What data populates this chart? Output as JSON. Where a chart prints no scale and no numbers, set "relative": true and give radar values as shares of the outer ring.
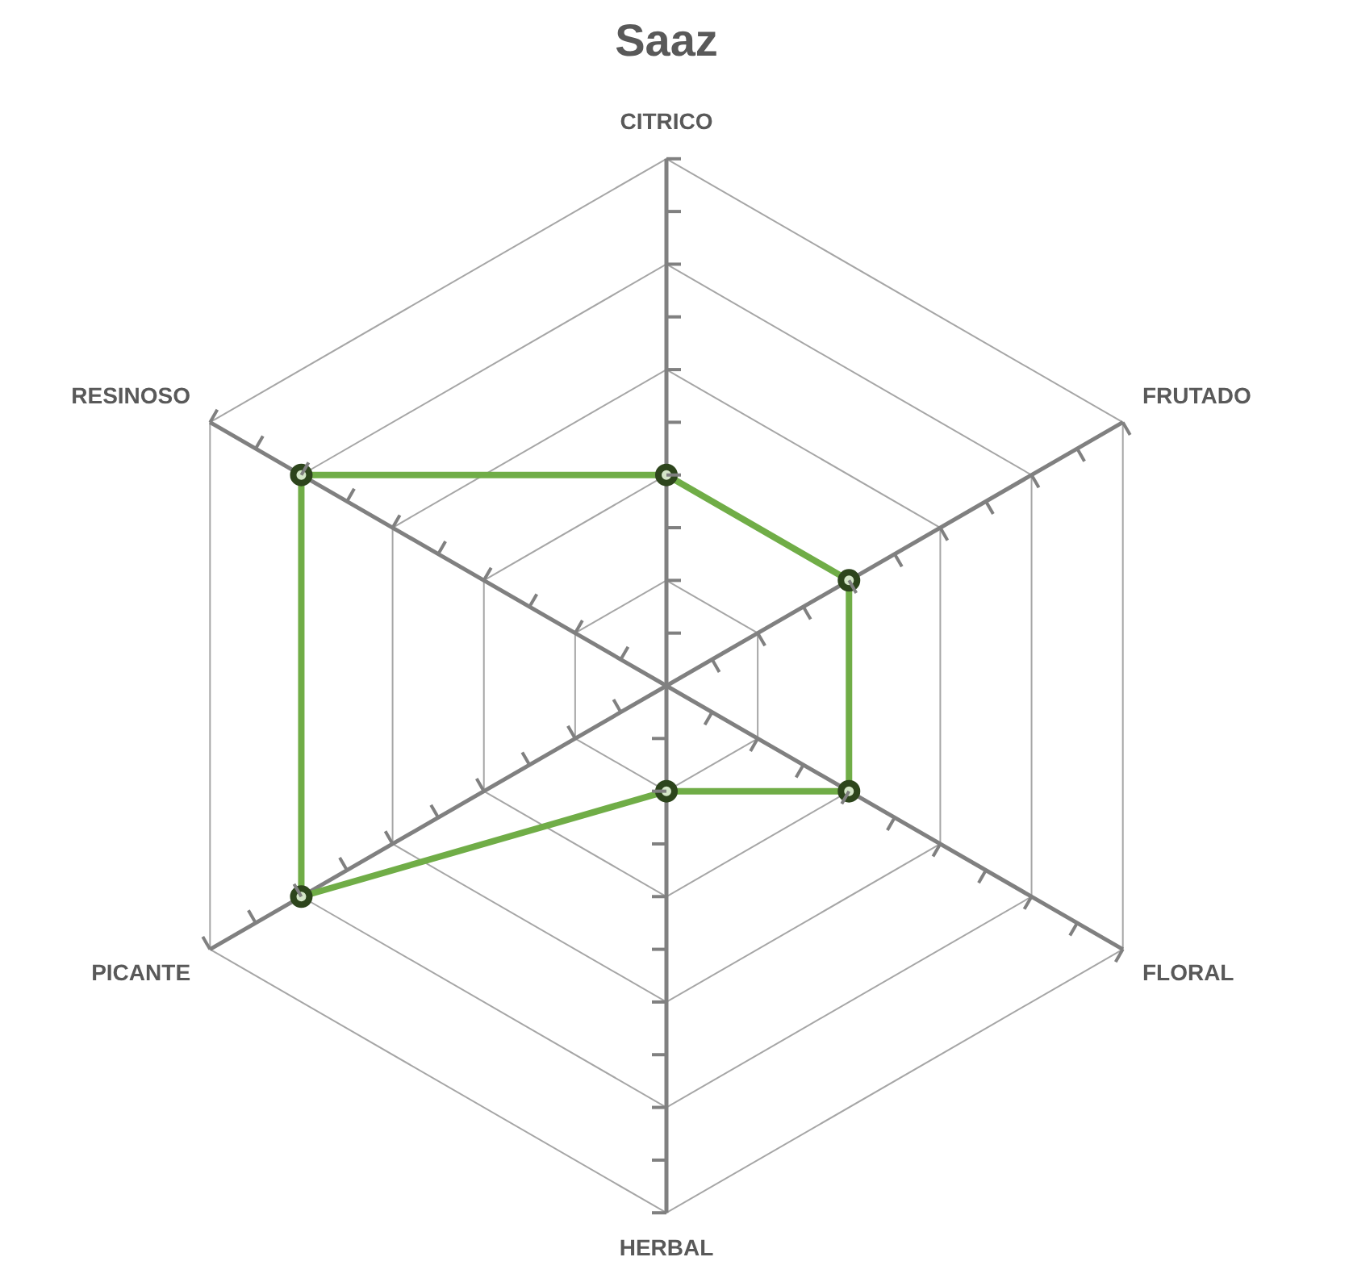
{
  "chart_data": {
    "type": "radar",
    "title": "Saaz",
    "categories": [
      "CITRICO",
      "FRUTADO",
      "FLORAL",
      "HERBAL",
      "PICANTE",
      "RESINOSO"
    ],
    "relative": true,
    "series": [
      {
        "color": "#70ad47",
        "values": [
          0.4,
          0.4,
          0.4,
          0.2,
          0.8,
          0.8
        ]
      }
    ],
    "grid": true,
    "marker": "circle",
    "line_style": "solid"
  }
}
